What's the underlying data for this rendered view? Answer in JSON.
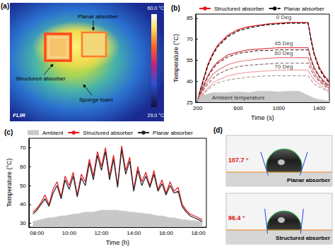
{
  "thermal_image": {
    "title": "(a)",
    "logo": "FLIR",
    "scale_max_label": "60.0 °C",
    "scale_min_label": "29.0 °C",
    "planar_label": "Planar absorber",
    "structured_label": "Structured absorber",
    "foam_label": "Sponge foam"
  },
  "chart_data": [
    {
      "type": "line",
      "title": "(b)",
      "x_label": "Time (s)",
      "y_label": "Temperature (°C)",
      "x": [
        200,
        250,
        300,
        350,
        400,
        500,
        600,
        700,
        800,
        900,
        1000,
        1100,
        1200,
        1290,
        1320,
        1350,
        1400,
        1450,
        1500
      ],
      "xlim": [
        180,
        1500
      ],
      "xticks": [
        200,
        600,
        1000,
        1400
      ],
      "ylim": [
        25,
        88
      ],
      "yticks": [
        25,
        40,
        55,
        70,
        85
      ],
      "grid": false,
      "legend": "top",
      "series": [
        {
          "name": "Structured absorber",
          "color": "#e8141c",
          "line_style": "solid",
          "values": [
            27,
            40,
            52,
            60,
            66,
            73,
            77,
            79,
            80,
            81,
            81.5,
            82,
            82,
            82,
            70,
            60,
            50,
            44,
            40
          ]
        },
        {
          "name": "Planar absorber",
          "color": "#000000",
          "line_style": "dashed",
          "values": [
            27,
            39,
            51,
            59,
            65,
            72,
            76,
            78,
            79.5,
            80.5,
            81,
            81.5,
            81.5,
            81.5,
            69,
            59,
            49,
            43,
            39
          ]
        },
        {
          "name": "Structured absorber",
          "color": "#e0424a",
          "line_style": "solid",
          "values": [
            27,
            36,
            44,
            50,
            54,
            59,
            61,
            62.5,
            63,
            63.5,
            64,
            64,
            64,
            64,
            56,
            50,
            44,
            40,
            37
          ]
        },
        {
          "name": "Planar absorber",
          "color": "#5a3a3c",
          "line_style": "dashed",
          "values": [
            27,
            35,
            43,
            49,
            53,
            57.5,
            60,
            61,
            62,
            62,
            62.5,
            62.5,
            62.5,
            62.5,
            55,
            49,
            43,
            39,
            36
          ]
        },
        {
          "name": "Structured absorber",
          "color": "#e87a80",
          "line_style": "solid",
          "values": [
            27,
            34,
            40,
            45,
            48,
            52,
            54,
            55,
            56,
            56.5,
            57,
            57,
            57,
            57,
            51,
            46,
            41,
            38,
            35
          ]
        },
        {
          "name": "Planar absorber",
          "color": "#8a6a6c",
          "line_style": "dashed",
          "values": [
            27,
            33,
            38,
            42,
            45,
            48.5,
            50.5,
            51.5,
            52,
            52.5,
            53,
            53,
            53,
            53,
            48,
            44,
            40,
            37,
            34
          ]
        },
        {
          "name": "Structured absorber",
          "color": "#f0a8ac",
          "line_style": "solid",
          "values": [
            27,
            31,
            35,
            39,
            41,
            44,
            45.5,
            46.5,
            47,
            47.5,
            48,
            48,
            48,
            48,
            44,
            41,
            38,
            35,
            33
          ]
        },
        {
          "name": "Planar absorber",
          "color": "#b8a0a2",
          "line_style": "dashed",
          "values": [
            27,
            30,
            34,
            37,
            39,
            41,
            42,
            43,
            43.5,
            44,
            44,
            44,
            44,
            44,
            41,
            38,
            36,
            34,
            32
          ]
        },
        {
          "type": "area",
          "color": "#c8c8c8",
          "values": [
            28,
            30,
            31,
            32,
            32,
            32,
            32.5,
            32,
            33,
            33,
            32.5,
            33,
            33,
            30,
            29,
            28,
            27,
            26.5,
            26
          ]
        }
      ],
      "annotations": [
        {
          "text": "0 Deg",
          "x": 1050,
          "y": 85.5
        },
        {
          "text": "45 Deg",
          "x": 1050,
          "y": 67
        },
        {
          "text": "60 Deg",
          "x": 1050,
          "y": 59.8
        },
        {
          "text": "70 Deg",
          "x": 1050,
          "y": 50.5
        },
        {
          "text": "Ambient temperature",
          "x": 600,
          "y": 28.5
        }
      ]
    },
    {
      "type": "line",
      "title": "(c)",
      "x_label": "Time (h)",
      "y_label": "Temperature (°C)",
      "x": [
        7.75,
        8,
        8.25,
        8.5,
        8.75,
        9,
        9.25,
        9.5,
        9.75,
        10,
        10.25,
        10.5,
        10.75,
        11,
        11.25,
        11.5,
        11.75,
        12,
        12.25,
        12.5,
        12.75,
        13,
        13.25,
        13.5,
        13.75,
        14,
        14.25,
        14.5,
        14.75,
        15,
        15.25,
        15.5,
        15.75,
        16,
        16.25,
        16.5,
        16.75,
        17,
        17.25,
        17.5,
        17.75,
        18,
        18.25
      ],
      "xlim": [
        7.5,
        18.5
      ],
      "xticks": [
        {
          "value": 8,
          "label": "08:00"
        },
        {
          "value": 10,
          "label": "10:00"
        },
        {
          "value": 12,
          "label": "12:00"
        },
        {
          "value": 14,
          "label": "14:00"
        },
        {
          "value": 16,
          "label": "16:00"
        },
        {
          "value": 18,
          "label": "18:00"
        }
      ],
      "ylim": [
        28,
        75
      ],
      "yticks": [
        30,
        40,
        50,
        60,
        70
      ],
      "grid": false,
      "legend": "top",
      "series": [
        {
          "name": "Ambient",
          "type": "area",
          "color": "#c8c8c8",
          "values": [
            31,
            31.5,
            32,
            32.5,
            33,
            33,
            33.5,
            34,
            34,
            34.5,
            35,
            35,
            35.5,
            36,
            36,
            36,
            36.5,
            37,
            37,
            37,
            37,
            37,
            36.5,
            36.5,
            36,
            36,
            35.5,
            35.5,
            35,
            35,
            34.5,
            34,
            34,
            33.5,
            33,
            33,
            32.5,
            32,
            32,
            31.5,
            31.5,
            31,
            31
          ]
        },
        {
          "name": "Structured absorber",
          "color": "#e8141c",
          "line_style": "solid",
          "values": [
            36,
            38,
            41,
            45,
            40,
            48,
            52,
            44,
            55,
            50,
            57,
            45,
            56,
            52,
            64,
            55,
            68,
            60,
            70,
            55,
            66,
            50,
            71,
            58,
            65,
            48,
            60,
            52,
            57,
            50,
            58,
            48,
            53,
            46,
            52,
            47,
            49,
            40,
            37,
            35,
            34,
            33,
            32
          ]
        },
        {
          "name": "Planar absorber",
          "color": "#222222",
          "line_style": "solid",
          "values": [
            35,
            37,
            40,
            43,
            39,
            46,
            50,
            43,
            53,
            48,
            55,
            44,
            54,
            50,
            62,
            53,
            66,
            58,
            68,
            53,
            64,
            49,
            69,
            56,
            63,
            47,
            58,
            50,
            55,
            49,
            56,
            47,
            51,
            45,
            50,
            46,
            47,
            39,
            36,
            34,
            33,
            32,
            31
          ]
        }
      ]
    }
  ],
  "contact_angles": {
    "title": "(d)",
    "samples": [
      {
        "name": "Planar absorber",
        "angle": 107.7,
        "angle_label": "107.7 °"
      },
      {
        "name": "Structured absorber",
        "angle": 96.4,
        "angle_label": "96.4 °"
      }
    ]
  }
}
